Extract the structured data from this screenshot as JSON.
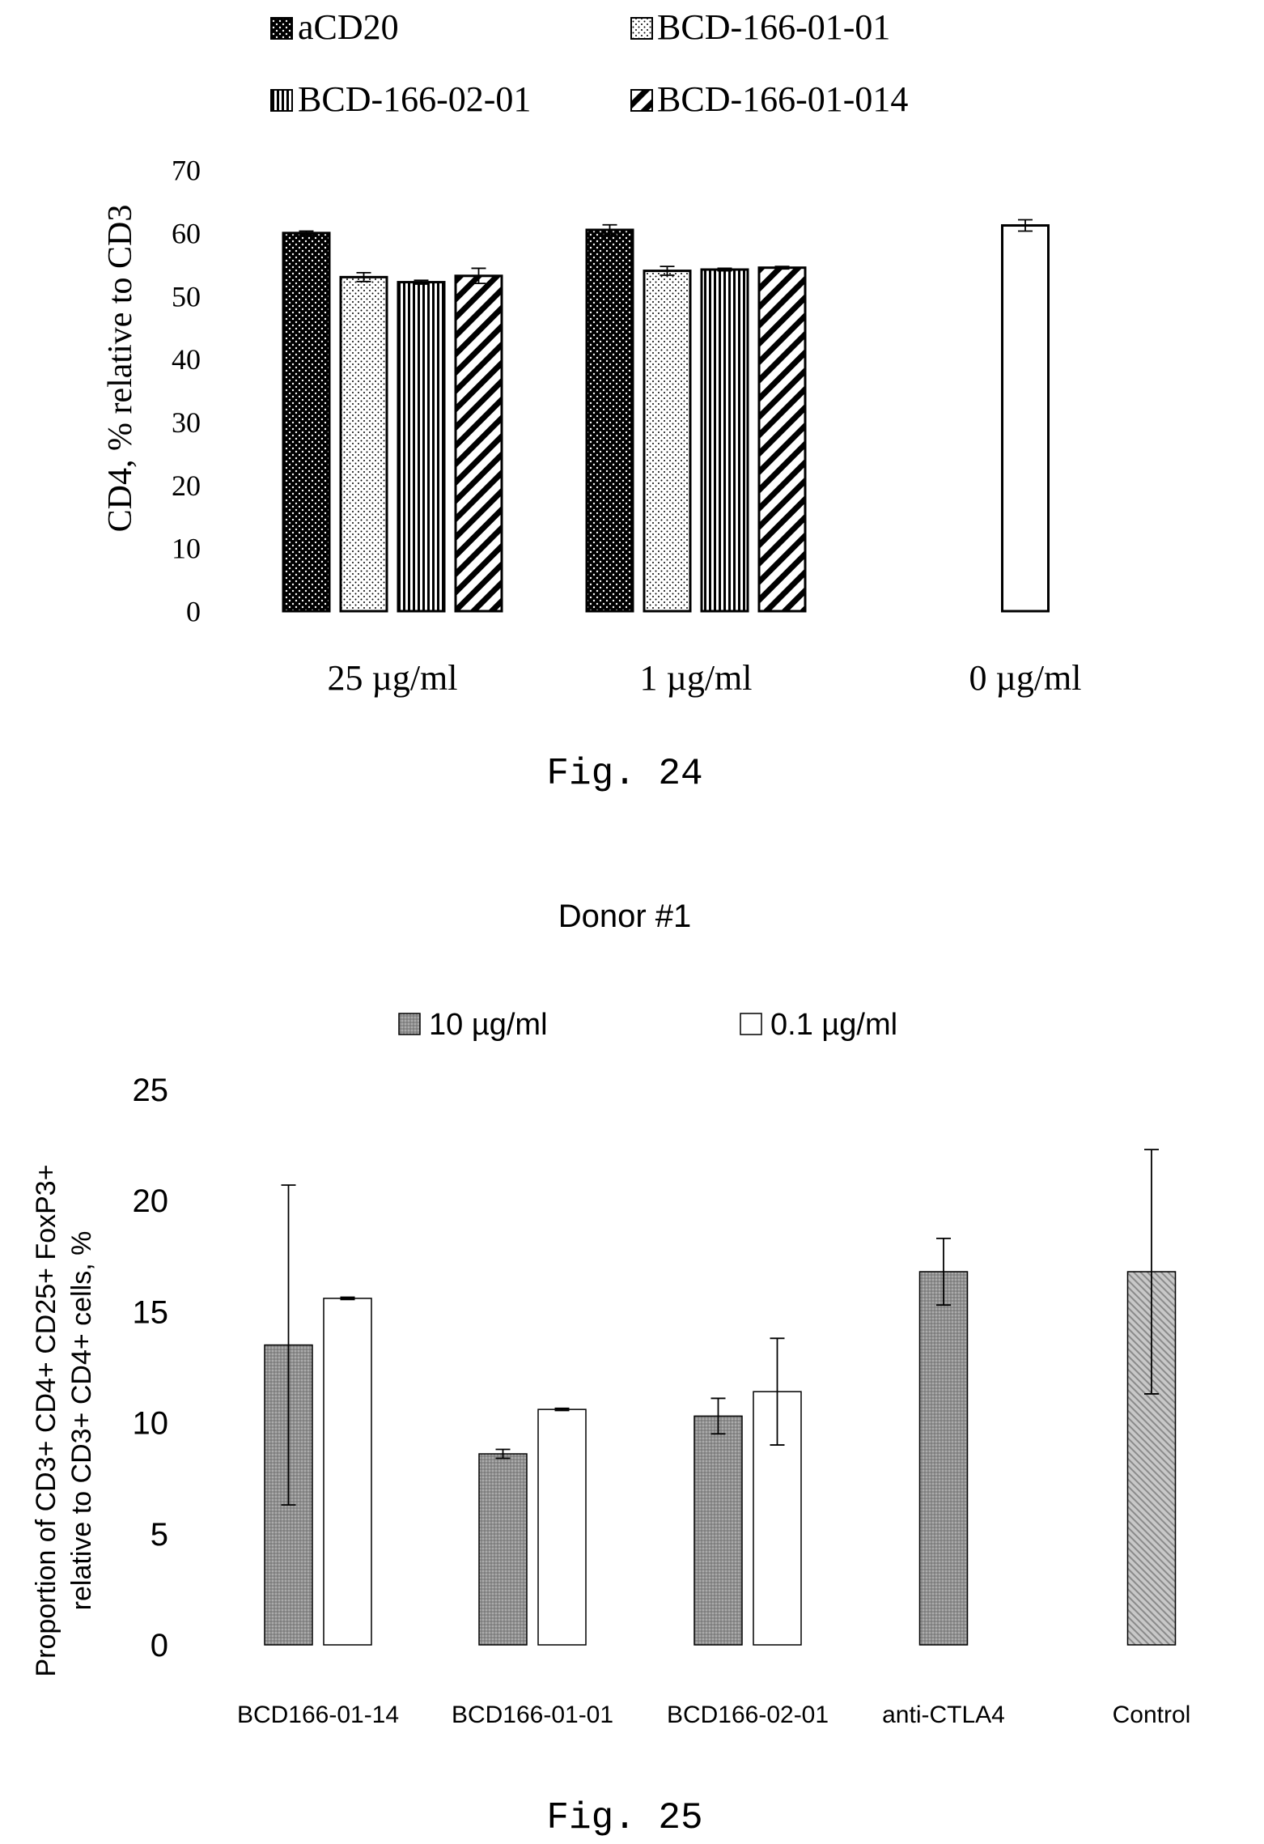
{
  "chart_data": [
    {
      "type": "bar",
      "caption": "Fig. 24",
      "ylabel": "CD4, % relative to CD3",
      "xlabel": "",
      "ylim": [
        0,
        70
      ],
      "yticks": [
        0,
        10,
        20,
        30,
        40,
        50,
        60,
        70
      ],
      "grid": false,
      "legend_position": "top",
      "categories": [
        "25 µg/ml",
        "1 µg/ml",
        "0 µg/ml"
      ],
      "series": [
        {
          "name": "aCD20",
          "pattern": "dots-dark",
          "values": [
            60.0,
            60.5,
            null
          ],
          "errors": [
            0.3,
            0.8,
            null
          ]
        },
        {
          "name": "BCD-166-01-01",
          "pattern": "dots-light",
          "values": [
            53.0,
            54.0,
            null
          ],
          "errors": [
            0.7,
            0.7,
            null
          ]
        },
        {
          "name": "BCD-166-02-01",
          "pattern": "vertical-lines",
          "values": [
            52.2,
            54.2,
            null
          ],
          "errors": [
            0.3,
            0.2,
            null
          ]
        },
        {
          "name": "BCD-166-01-014",
          "pattern": "diagonal-lines",
          "values": [
            53.2,
            54.5,
            null
          ],
          "errors": [
            1.2,
            0.2,
            null
          ]
        },
        {
          "name": "",
          "pattern": "open",
          "values": [
            null,
            null,
            61.2
          ],
          "errors": [
            null,
            null,
            0.9
          ]
        }
      ]
    },
    {
      "type": "bar",
      "title": "Donor #1",
      "caption": "Fig. 25",
      "ylabel": "Proportion of CD3+ CD4+ CD25+ FoxP3+ relative to CD3+ CD4+ cells, %",
      "ylabel_lines": [
        "Proportion of CD3+ CD4+ CD25+ FoxP3+",
        "relative to CD3+ CD4+ cells, %"
      ],
      "xlabel": "",
      "ylim": [
        0,
        25
      ],
      "yticks": [
        0,
        5,
        10,
        15,
        20,
        25
      ],
      "grid": false,
      "legend_position": "top",
      "categories": [
        "BCD166-01-14",
        "BCD166-01-01",
        "BCD166-02-01",
        "anti-CTLA4",
        "Control"
      ],
      "series": [
        {
          "name": "10 µg/ml",
          "pattern": "gray",
          "values": [
            13.5,
            8.6,
            10.3,
            16.8,
            null
          ],
          "errors": [
            7.2,
            0.2,
            0.8,
            1.5,
            null
          ]
        },
        {
          "name": "0.1 µg/ml",
          "pattern": "open",
          "values": [
            15.6,
            10.6,
            11.4,
            null,
            null
          ],
          "errors": [
            0.05,
            0.05,
            2.4,
            null,
            null
          ]
        },
        {
          "name": "",
          "pattern": "hatched-gray",
          "values": [
            null,
            null,
            null,
            null,
            16.8
          ],
          "errors": [
            null,
            null,
            null,
            null,
            5.5
          ]
        }
      ]
    }
  ]
}
